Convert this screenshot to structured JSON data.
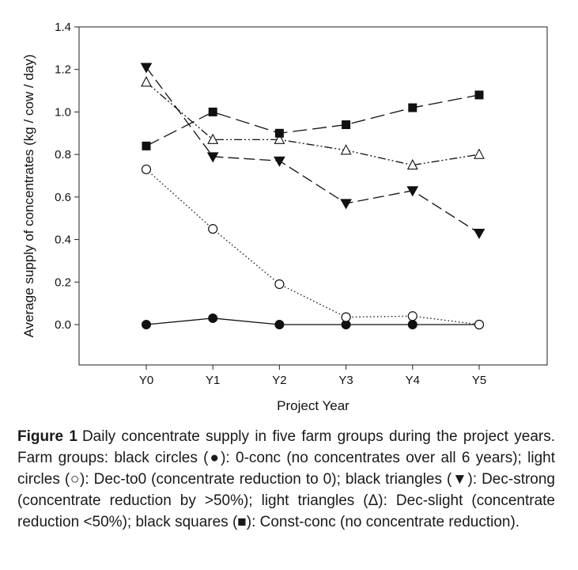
{
  "chart_data": {
    "type": "line",
    "xlabel": "Project Year",
    "ylabel": "Average supply of concentrates (kg / cow / day)",
    "categories": [
      "Y0",
      "Y1",
      "Y2",
      "Y3",
      "Y4",
      "Y5"
    ],
    "ylim": [
      -0.18,
      1.4
    ],
    "yticks": [
      0.0,
      0.2,
      0.4,
      0.6,
      0.8,
      1.0,
      1.2,
      1.4
    ],
    "ytick_labels": [
      "0.0",
      "0.2",
      "0.4",
      "0.6",
      "0.8",
      "1.0",
      "1.2",
      "1.4"
    ],
    "grid": false,
    "series": [
      {
        "key": "0-conc",
        "marker": "filled-circle",
        "line": "solid",
        "values": [
          0.0,
          0.03,
          0.0,
          0.0,
          0.0,
          0.0
        ]
      },
      {
        "key": "Dec-to0",
        "marker": "open-circle",
        "line": "dotted",
        "values": [
          0.73,
          0.45,
          0.19,
          0.035,
          0.04,
          0.0
        ]
      },
      {
        "key": "Dec-strong",
        "marker": "filled-triangle-down",
        "line": "dashed",
        "values": [
          1.21,
          0.79,
          0.77,
          0.57,
          0.63,
          0.43
        ]
      },
      {
        "key": "Dec-slight",
        "marker": "open-triangle-up",
        "line": "dash-dot-dot",
        "values": [
          1.14,
          0.87,
          0.87,
          0.82,
          0.75,
          0.8
        ]
      },
      {
        "key": "Const-conc",
        "marker": "filled-square",
        "line": "long-dash",
        "values": [
          0.84,
          1.0,
          0.9,
          0.94,
          1.02,
          1.08
        ]
      }
    ]
  },
  "caption": {
    "label": "Figure 1",
    "text": "Daily concentrate supply in five farm groups during the project years. Farm groups: black circles (●): 0-conc (no concentrates over all 6 years); light circles (○): Dec-to0 (concentrate reduction to 0); black triangles (▼): Dec-strong (concentrate reduction by >50%); light triangles (Δ): Dec-slight (concentrate reduction <50%); black squares (■): Const-conc (no concentrate reduction)."
  }
}
